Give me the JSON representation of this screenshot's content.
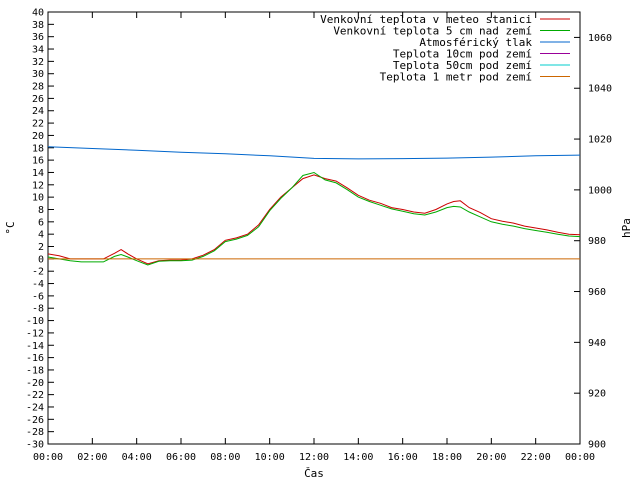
{
  "chart_data": {
    "type": "line",
    "xlabel": "Čas",
    "ylabel_left": "°C",
    "ylabel_right": "hPa",
    "x_ticks": [
      "00:00",
      "02:00",
      "04:00",
      "06:00",
      "08:00",
      "10:00",
      "12:00",
      "14:00",
      "16:00",
      "18:00",
      "20:00",
      "22:00",
      "00:00"
    ],
    "xlim": [
      0,
      24
    ],
    "ylim_left": [
      -30,
      40
    ],
    "ylim_right": [
      900,
      1070
    ],
    "y_ticks_left": [
      40,
      38,
      36,
      34,
      32,
      30,
      28,
      26,
      24,
      22,
      20,
      18,
      16,
      14,
      12,
      10,
      8,
      6,
      4,
      2,
      0,
      -2,
      -4,
      -6,
      -8,
      -10,
      -12,
      -14,
      -16,
      -18,
      -20,
      -22,
      -24,
      -26,
      -28,
      -30
    ],
    "y_ticks_right": [
      1060,
      1040,
      1020,
      1000,
      980,
      960,
      940,
      920,
      900
    ],
    "grid": false,
    "legend_position": "top-right",
    "series": [
      {
        "name": "Venkovní teplota v meteo stanici",
        "color": "#cc0000",
        "axis": "left",
        "x": [
          0,
          0.5,
          1,
          1.5,
          2,
          2.5,
          3,
          3.3,
          3.6,
          4,
          4.5,
          5,
          5.5,
          6,
          6.5,
          7,
          7.5,
          8,
          8.5,
          9,
          9.5,
          10,
          10.5,
          11,
          11.5,
          12,
          12.5,
          13,
          13.5,
          14,
          14.5,
          15,
          15.5,
          16,
          16.5,
          17,
          17.5,
          18,
          18.3,
          18.6,
          19,
          19.5,
          20,
          20.5,
          21,
          21.5,
          22,
          22.5,
          23,
          23.5,
          24
        ],
        "y": [
          0.8,
          0.5,
          0,
          0,
          0,
          0,
          0.9,
          1.5,
          0.8,
          0,
          -0.8,
          -0.3,
          -0.2,
          -0.2,
          0,
          0.6,
          1.5,
          3,
          3.4,
          4,
          5.5,
          8,
          10,
          11.5,
          13,
          13.6,
          13,
          12.6,
          11.5,
          10.3,
          9.5,
          9,
          8.3,
          8,
          7.6,
          7.4,
          8,
          8.9,
          9.3,
          9.4,
          8.3,
          7.5,
          6.5,
          6.1,
          5.8,
          5.3,
          5,
          4.7,
          4.3,
          4,
          3.9
        ]
      },
      {
        "name": "Venkovní teplota 5 cm nad zemí",
        "color": "#00aa00",
        "axis": "left",
        "x": [
          0,
          0.5,
          1,
          1.5,
          2,
          2.5,
          3,
          3.3,
          3.6,
          4,
          4.5,
          5,
          5.5,
          6,
          6.5,
          7,
          7.5,
          8,
          8.5,
          9,
          9.5,
          10,
          10.5,
          11,
          11.5,
          12,
          12.5,
          13,
          13.5,
          14,
          14.5,
          15,
          15.5,
          16,
          16.5,
          17,
          17.5,
          18,
          18.3,
          18.6,
          19,
          19.5,
          20,
          20.5,
          21,
          21.5,
          22,
          22.5,
          23,
          23.5,
          24
        ],
        "y": [
          0.3,
          0,
          -0.3,
          -0.5,
          -0.5,
          -0.5,
          0.4,
          0.7,
          0.3,
          -0.3,
          -1,
          -0.4,
          -0.3,
          -0.3,
          -0.2,
          0.4,
          1.3,
          2.8,
          3.2,
          3.8,
          5.2,
          7.8,
          9.8,
          11.5,
          13.5,
          14,
          12.8,
          12.3,
          11.2,
          10,
          9.3,
          8.7,
          8.1,
          7.7,
          7.3,
          7.1,
          7.6,
          8.3,
          8.5,
          8.4,
          7.6,
          6.8,
          6,
          5.6,
          5.3,
          4.9,
          4.6,
          4.3,
          4,
          3.7,
          3.6
        ]
      },
      {
        "name": "Atmosférický tlak",
        "color": "#0066cc",
        "axis": "right",
        "x": [
          0,
          2,
          4,
          6,
          8,
          10,
          12,
          14,
          16,
          18,
          20,
          22,
          24
        ],
        "y": [
          1017,
          1016.3,
          1015.6,
          1014.8,
          1014.2,
          1013.4,
          1012.4,
          1012.2,
          1012.3,
          1012.5,
          1012.9,
          1013.4,
          1013.7
        ]
      },
      {
        "name": "Teplota 10cm pod zemí",
        "color": "#990099",
        "axis": "left",
        "x": [],
        "y": []
      },
      {
        "name": "Teplota 50cm pod zemí",
        "color": "#00cccc",
        "axis": "left",
        "x": [],
        "y": []
      },
      {
        "name": "Teplota 1 metr pod zemí",
        "color": "#cc6600",
        "axis": "left",
        "x": [
          0,
          24
        ],
        "y": [
          0,
          0
        ]
      }
    ]
  }
}
